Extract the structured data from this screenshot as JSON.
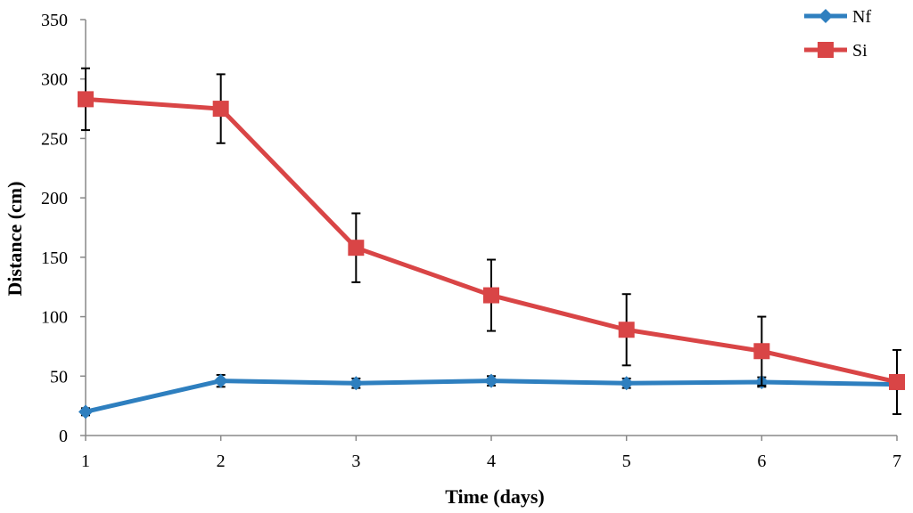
{
  "chart_data": {
    "type": "line",
    "xlabel": "Time (days)",
    "ylabel": "Distance (cm)",
    "x": [
      1,
      2,
      3,
      4,
      5,
      6,
      7
    ],
    "xlim": [
      1,
      7
    ],
    "ylim": [
      0,
      350
    ],
    "yticks": [
      0,
      50,
      100,
      150,
      200,
      250,
      300,
      350
    ],
    "grid": false,
    "legend_position": "top-right",
    "series": [
      {
        "name": "Nf",
        "color": "#2e7fbf",
        "marker": "diamond",
        "values": [
          20,
          46,
          44,
          46,
          44,
          45,
          43
        ],
        "errors": [
          3,
          5,
          4,
          4,
          4,
          4,
          3
        ]
      },
      {
        "name": "Si",
        "color": "#d94546",
        "marker": "square",
        "values": [
          283,
          275,
          158,
          118,
          89,
          71,
          45
        ],
        "errors": [
          26,
          29,
          29,
          30,
          30,
          29,
          27
        ]
      }
    ]
  }
}
